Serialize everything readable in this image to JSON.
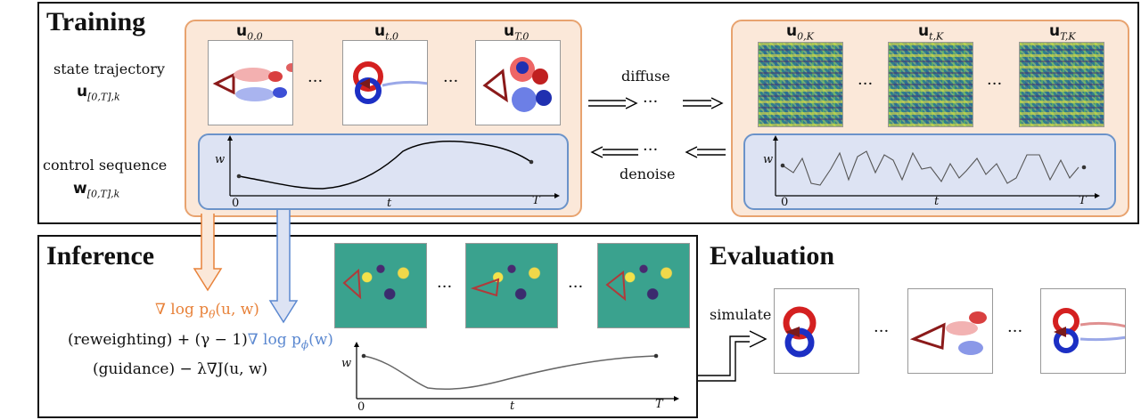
{
  "colors": {
    "orange": "#e8823a",
    "blue": "#5b88d0",
    "orange_fill": "#fbe8d9",
    "blue_fill": "#dde3f3"
  },
  "training": {
    "title": "Training",
    "state_label": "state trajectory",
    "state_var_main": "u",
    "state_var_sub": "[0,T],k",
    "control_label": "control sequence",
    "control_var_main": "w",
    "control_var_sub": "[0,T],k",
    "clean_states": [
      {
        "main": "u",
        "sub": "0,0"
      },
      {
        "main": "u",
        "sub": "t,0"
      },
      {
        "main": "u",
        "sub": "T,0"
      }
    ],
    "noisy_states": [
      {
        "main": "u",
        "sub": "0,K"
      },
      {
        "main": "u",
        "sub": "t,K"
      },
      {
        "main": "u",
        "sub": "T,K"
      }
    ],
    "ellipsis": "···",
    "diffuse_label": "diffuse",
    "denoise_label": "denoise",
    "plot_ylabel": "w",
    "plot_xlabel": "t",
    "plot_x0": "0",
    "plot_xT": "T"
  },
  "inference": {
    "title": "Inference",
    "score_theta": "∇ log p",
    "score_theta_sub": "θ",
    "score_theta_args": "(u, w)",
    "line1_prefix": "(reweighting) + (γ − 1)",
    "score_phi": "∇ log p",
    "score_phi_sub": "ϕ",
    "score_phi_args": "(w)",
    "line2": "(guidance)  − λ∇J(u, w)",
    "ellipsis": "···",
    "plot_ylabel": "w",
    "plot_xlabel": "t",
    "plot_x0": "0",
    "plot_xT": "T"
  },
  "evaluation": {
    "title": "Evaluation",
    "simulate_label": "simulate",
    "ellipsis": "···"
  }
}
